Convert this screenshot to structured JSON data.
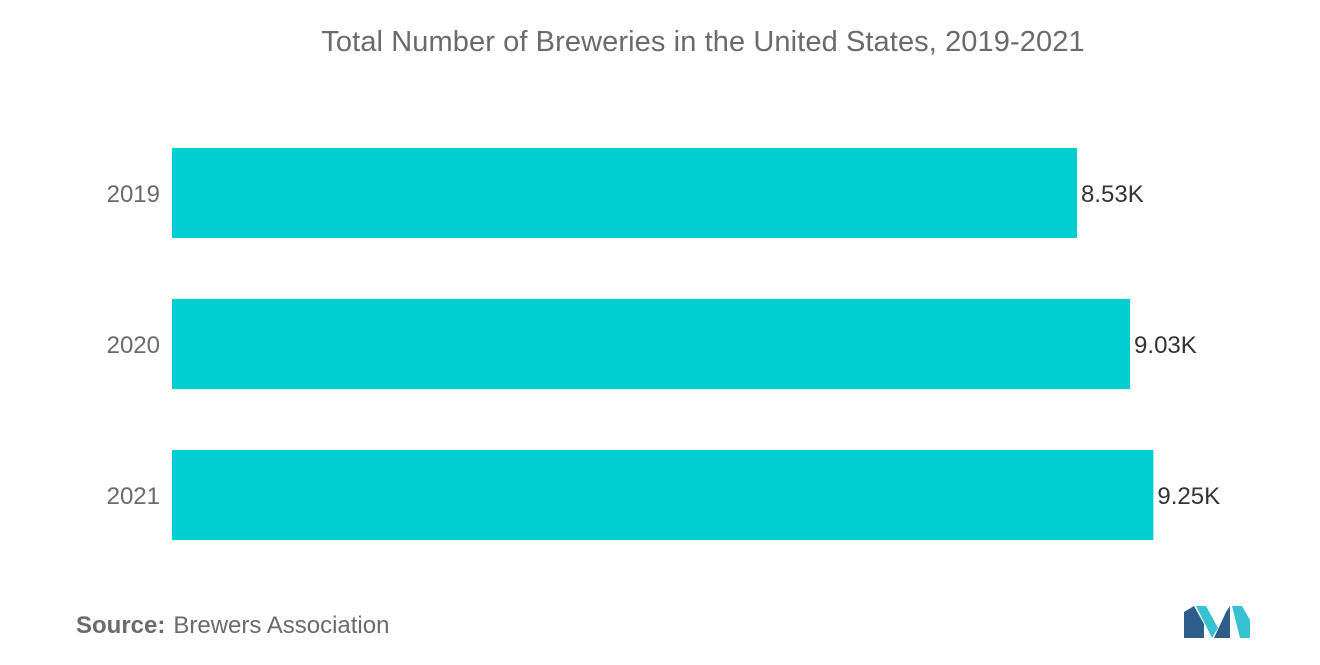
{
  "chart_data": {
    "type": "bar",
    "orientation": "horizontal",
    "title": "Total Number of Breweries in the United States, 2019-2021",
    "categories": [
      "2019",
      "2020",
      "2021"
    ],
    "values": [
      8530,
      9030,
      9250
    ],
    "value_labels": [
      "8.53K",
      "9.03K",
      "9.25K"
    ],
    "xlim": [
      0,
      10000
    ],
    "grid": false,
    "legend": "none",
    "bar_color": "#00ced1"
  },
  "source": {
    "label": "Source:",
    "text": "Brewers Association"
  },
  "colors": {
    "text": "#6b6b6b",
    "logo_dark": "#2f5d8a",
    "logo_light": "#37c1d1"
  }
}
